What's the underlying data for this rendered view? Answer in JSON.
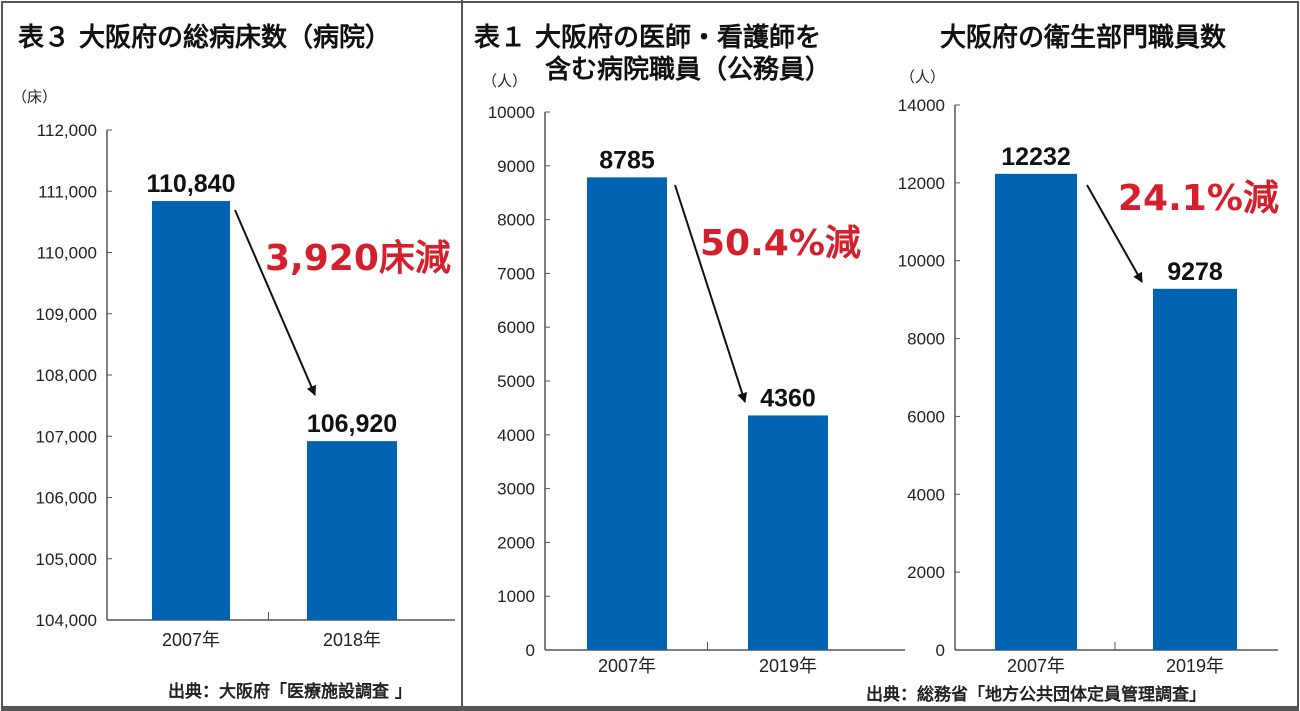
{
  "colors": {
    "bar": "#0063b1",
    "annotation": "#d4202c",
    "axis": "#555555"
  },
  "sources": {
    "left": "出典：大阪府「医療施設調査 」",
    "right": "出典：総務省「地方公共団体定員管理調査」"
  },
  "chart_data": [
    {
      "type": "bar",
      "title": "表３ 大阪府の総病床数（病院）",
      "unit": "（床）",
      "categories": [
        "2007年",
        "2018年"
      ],
      "values": [
        110840,
        106920
      ],
      "value_labels": [
        "110,840",
        "106,920"
      ],
      "ylim": [
        104000,
        112000
      ],
      "yticks": [
        104000,
        105000,
        106000,
        107000,
        108000,
        109000,
        110000,
        111000,
        112000
      ],
      "ytick_labels": [
        "104,000",
        "105,000",
        "106,000",
        "107,000",
        "108,000",
        "109,000",
        "110,000",
        "111,000",
        "112,000"
      ],
      "annotation": "3,920床減",
      "grid": false
    },
    {
      "type": "bar",
      "title_lines": [
        "表１ 大阪府の医師・看護師を",
        "含む病院職員（公務員）"
      ],
      "unit": "（人）",
      "categories": [
        "2007年",
        "2019年"
      ],
      "values": [
        8785,
        4360
      ],
      "value_labels": [
        "8785",
        "4360"
      ],
      "ylim": [
        0,
        10000
      ],
      "yticks": [
        0,
        1000,
        2000,
        3000,
        4000,
        5000,
        6000,
        7000,
        8000,
        9000,
        10000
      ],
      "ytick_labels": [
        "0",
        "1000",
        "2000",
        "3000",
        "4000",
        "5000",
        "6000",
        "7000",
        "8000",
        "9000",
        "10000"
      ],
      "annotation": "50.4%減",
      "grid": false
    },
    {
      "type": "bar",
      "title": "大阪府の衛生部門職員数",
      "unit": "（人）",
      "categories": [
        "2007年",
        "2019年"
      ],
      "values": [
        12232,
        9278
      ],
      "value_labels": [
        "12232",
        "9278"
      ],
      "ylim": [
        0,
        14000
      ],
      "yticks": [
        0,
        2000,
        4000,
        6000,
        8000,
        10000,
        12000,
        14000
      ],
      "ytick_labels": [
        "0",
        "2000",
        "4000",
        "6000",
        "8000",
        "10000",
        "12000",
        "14000"
      ],
      "annotation": "24.1%減",
      "grid": false
    }
  ]
}
